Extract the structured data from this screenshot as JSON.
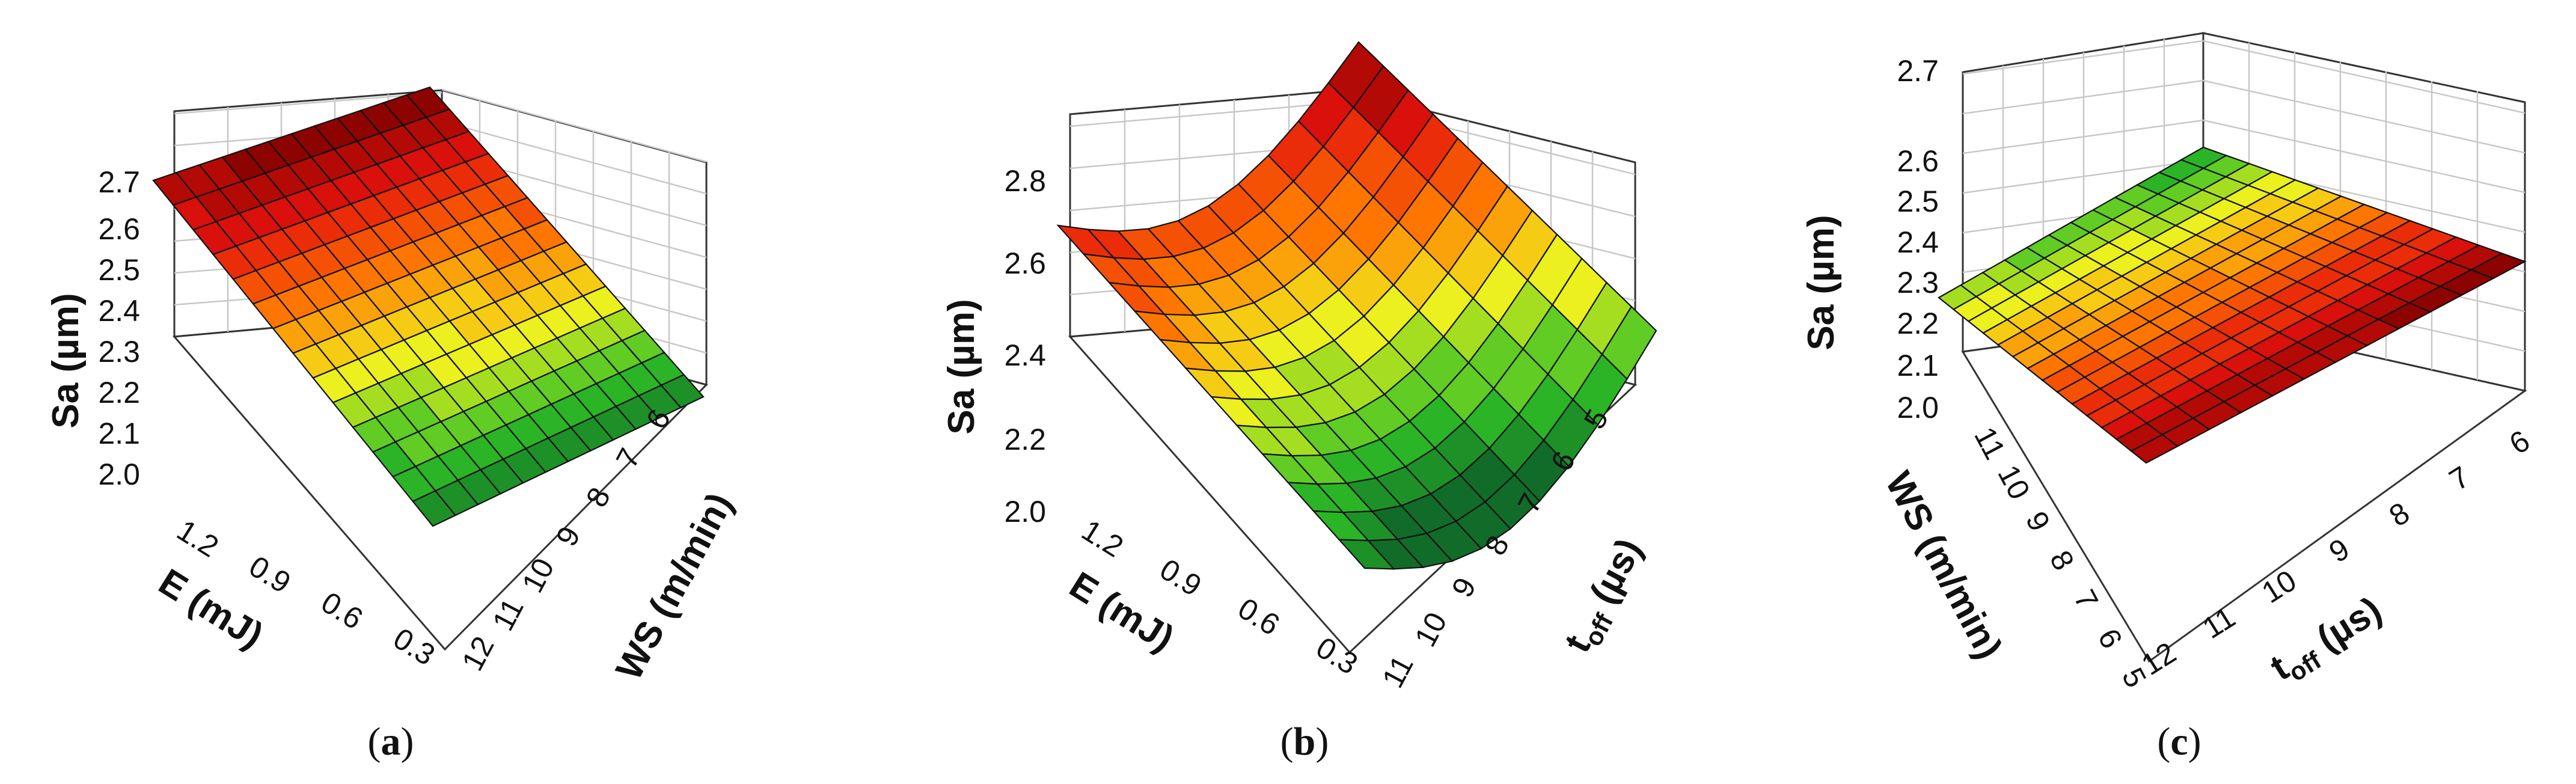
{
  "figure": {
    "panels": 3,
    "colormap": [
      "#0b5a2a",
      "#2fbf26",
      "#f2f21e",
      "#ff7a00",
      "#e4120c",
      "#7a0000"
    ]
  },
  "chart_data": [
    {
      "type": "surface",
      "panel": "a",
      "caption_prefix": "(",
      "caption_label": "a",
      "caption_suffix": ")",
      "zlabel": "Sa (µm)",
      "xlabel": "E (mJ)",
      "ylabel": "WS (m/min)",
      "zticks": [
        "2.0",
        "2.1",
        "2.2",
        "2.3",
        "2.4",
        "2.5",
        "2.6",
        "2.7"
      ],
      "xticks": [
        "1.2",
        "0.9",
        "0.6",
        "0.3"
      ],
      "yticks": [
        "12",
        "11",
        "10",
        "9",
        "8",
        "7",
        "6"
      ],
      "zlim": [
        1.95,
        2.7
      ],
      "surface_corners": {
        "E_1.35_WS_12": 2.58,
        "E_1.35_WS_6": 2.62,
        "E_0.15_WS_12": 1.93,
        "E_0.15_WS_6": 1.97
      }
    },
    {
      "type": "surface",
      "panel": "b",
      "caption_prefix": "(",
      "caption_label": "b",
      "caption_suffix": ")",
      "zlabel": "Sa (µm)",
      "xlabel": "E (mJ)",
      "ylabel_main": "t",
      "ylabel_sub": "off",
      "ylabel_unit": " (µs)",
      "zticks": [
        "2.0",
        "2.2",
        "2.4",
        "2.6",
        "2.8"
      ],
      "xticks": [
        "1.2",
        "0.9",
        "0.6",
        "0.3"
      ],
      "yticks": [
        "11",
        "10",
        "9",
        "8",
        "7",
        "6",
        "5"
      ],
      "zlim": [
        1.9,
        2.9
      ],
      "surface_corners": {
        "E_1.35_toff_11": 2.62,
        "E_1.35_toff_5": 2.9,
        "E_0.15_toff_11": 1.85,
        "E_0.15_toff_5": 2.25
      }
    },
    {
      "type": "surface",
      "panel": "c",
      "caption_prefix": "(",
      "caption_label": "c",
      "caption_suffix": ")",
      "zlabel": "Sa (µm)",
      "xlabel_main": "t",
      "xlabel_sub": "off",
      "xlabel_unit": " (µs)",
      "ylabel": "WS (m/min)",
      "zticks": [
        "2.0",
        "2.1",
        "2.2",
        "2.3",
        "2.4",
        "2.5",
        "2.6",
        "2.7"
      ],
      "xticks": [
        "12",
        "11",
        "10",
        "9",
        "8",
        "7",
        "6"
      ],
      "yticks": [
        "11",
        "10",
        "9",
        "8",
        "7",
        "6",
        "5"
      ],
      "zlim": [
        1.95,
        2.75
      ],
      "surface_corners": {
        "toff_12_WS_11": 2.2,
        "toff_12_WS_5": 2.1,
        "toff_6_WS_11": 2.45,
        "toff_6_WS_5": 2.3
      }
    }
  ]
}
